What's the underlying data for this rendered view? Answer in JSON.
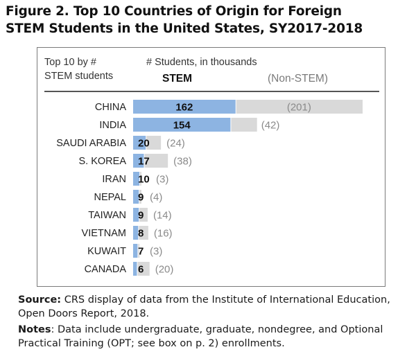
{
  "figure": {
    "title_line1": "Figure 2. Top 10 Countries of Origin for Foreign",
    "title_line2": "STEM Students in the United States, SY2017-2018"
  },
  "header": {
    "left_line1": "Top 10 by #",
    "left_line2": "STEM students",
    "units": "# Students, in thousands",
    "stem_label": "STEM",
    "nonstem_label": "(Non-STEM)"
  },
  "chart_data": {
    "type": "bar",
    "orientation": "horizontal",
    "stacked": true,
    "title": "Top 10 Countries of Origin for Foreign STEM Students in the United States, SY2017-2018",
    "xlabel": "# Students, in thousands",
    "ylabel": "Top 10 by # STEM students",
    "categories": [
      "CHINA",
      "INDIA",
      "SAUDI ARABIA",
      "S. KOREA",
      "IRAN",
      "NEPAL",
      "TAIWAN",
      "VIETNAM",
      "KUWAIT",
      "CANADA"
    ],
    "series": [
      {
        "name": "STEM",
        "color": "#8db4e2",
        "values": [
          162,
          154,
          20,
          17,
          10,
          9,
          9,
          8,
          7,
          6
        ]
      },
      {
        "name": "Non-STEM",
        "color": "#d9d9d9",
        "values": [
          201,
          42,
          24,
          38,
          3,
          4,
          14,
          16,
          3,
          20
        ]
      }
    ],
    "data_labels": {
      "stem": [
        "162",
        "154",
        "20",
        "17",
        "10",
        "9",
        "9",
        "8",
        "7",
        "6"
      ],
      "nonstem": [
        "(201)",
        "(42)",
        "(24)",
        "(38)",
        "(3)",
        "(4)",
        "(14)",
        "(16)",
        "(3)",
        "(20)"
      ]
    },
    "xlim": [
      0,
      363
    ],
    "grid": false,
    "legend": "top (column headers)"
  },
  "footer": {
    "source_label": "Source:",
    "source_text": " CRS display of data from the Institute of International Education, Open Doors Report, 2018.",
    "notes_label": "Notes",
    "notes_text": ": Data include undergraduate, graduate, nondegree, and Optional Practical Training (OPT; see box on p. 2) enrollments."
  }
}
